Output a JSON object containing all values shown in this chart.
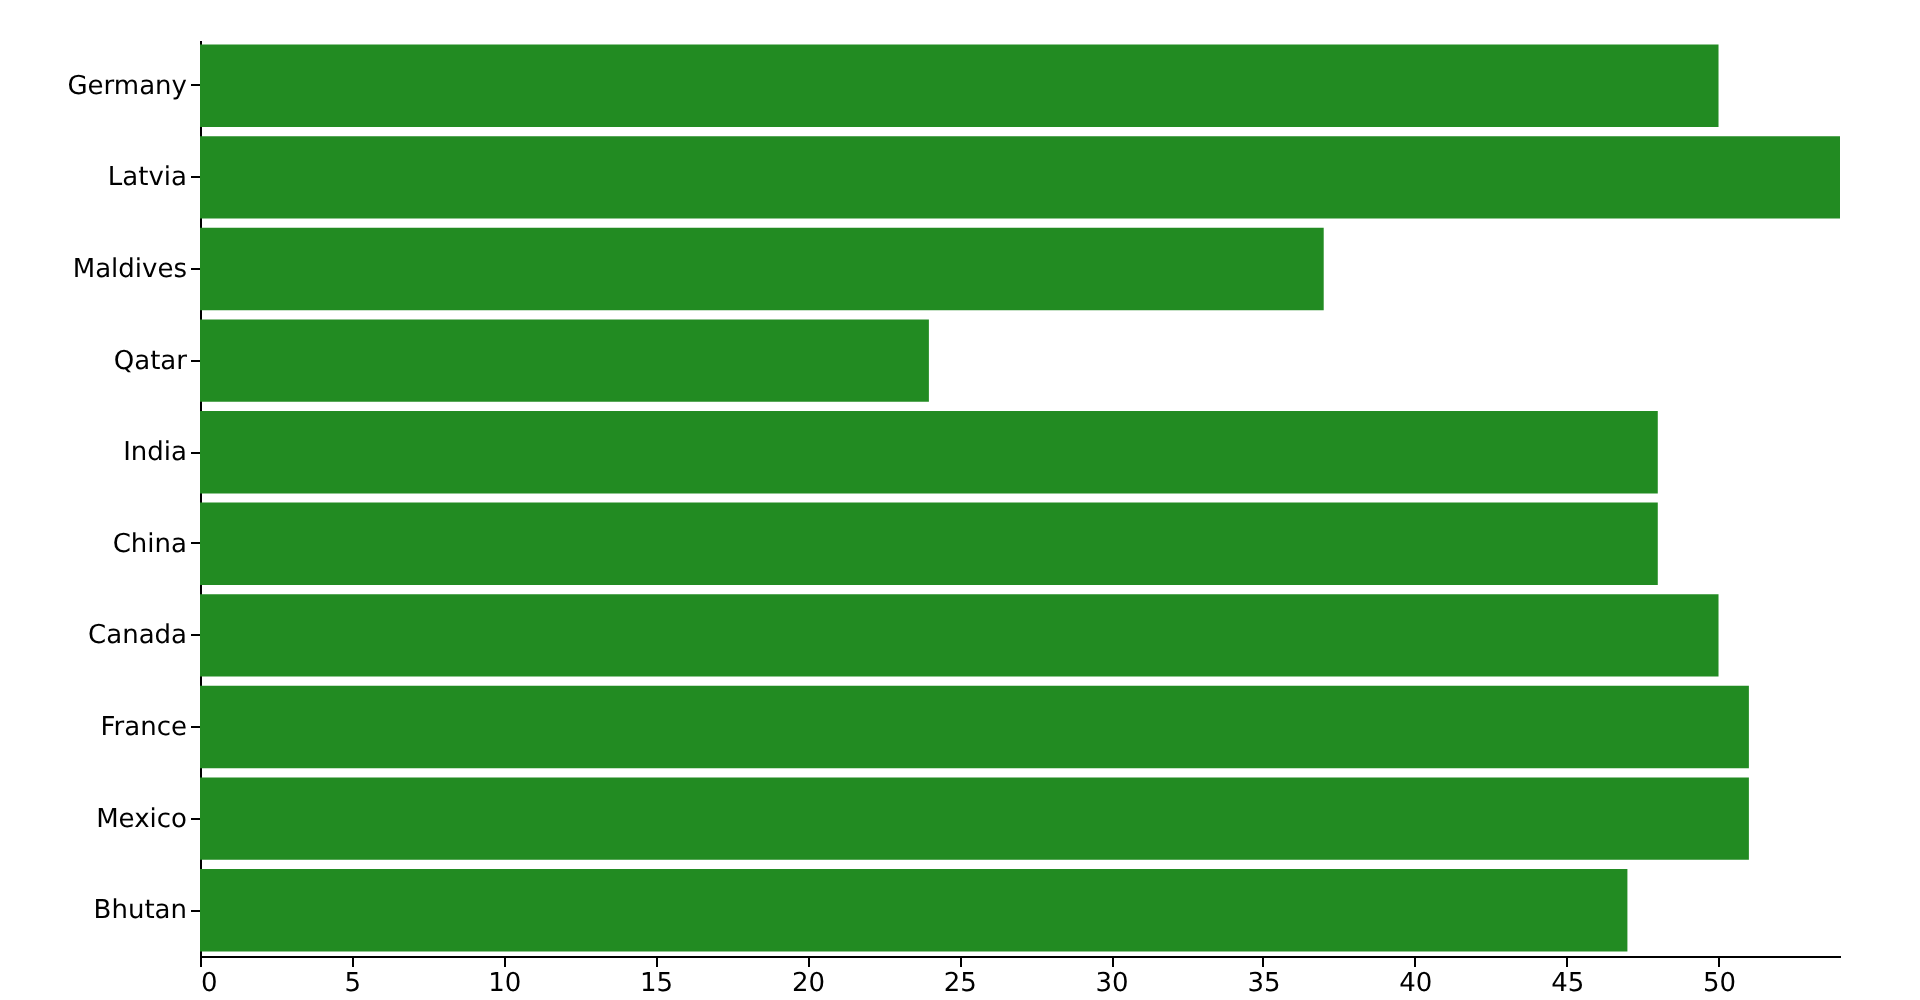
{
  "chart_data": {
    "type": "bar",
    "orientation": "horizontal",
    "categories": [
      "Germany",
      "Latvia",
      "Maldives",
      "Qatar",
      "India",
      "China",
      "Canada",
      "France",
      "Mexico",
      "Bhutan"
    ],
    "values": [
      50,
      54,
      37,
      24,
      48,
      48,
      50,
      51,
      51,
      47
    ],
    "color": "#228b22",
    "xlim": [
      0,
      54
    ],
    "xticks": [
      0,
      5,
      10,
      15,
      20,
      25,
      30,
      35,
      40,
      45,
      50
    ],
    "grid": false
  }
}
